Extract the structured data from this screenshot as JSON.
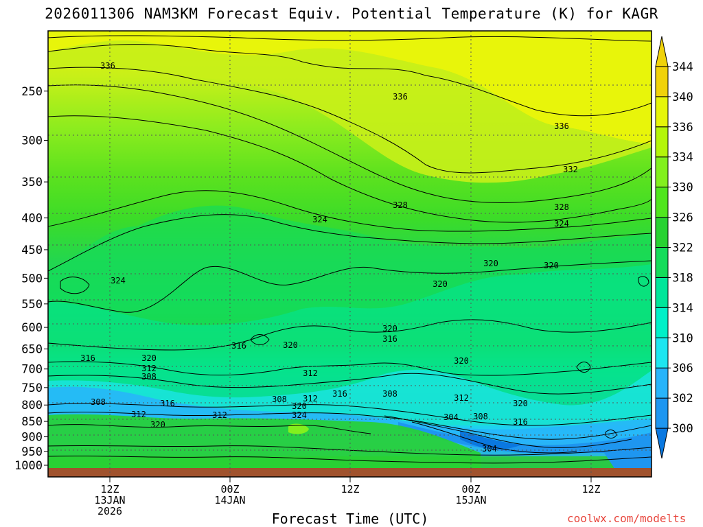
{
  "chart_data": {
    "type": "contour",
    "title": "2026011306 NAM3KM Forecast Equiv. Potential Temperature (K) for KAGR",
    "xlabel": "Forecast Time (UTC)",
    "credit": "coolwx.com/modelts",
    "y_axis": {
      "label": "",
      "ticks": [
        250,
        300,
        350,
        400,
        450,
        500,
        550,
        600,
        650,
        700,
        750,
        800,
        850,
        900,
        950,
        1000
      ],
      "range": [
        1000,
        200
      ],
      "scale": "log-pressure"
    },
    "x_axis": {
      "ticks": [
        {
          "lines": [
            "12Z",
            "13JAN",
            "2026"
          ]
        },
        {
          "lines": [
            "00Z",
            "14JAN"
          ]
        },
        {
          "lines": [
            "12Z"
          ]
        },
        {
          "lines": [
            "00Z",
            "15JAN"
          ]
        },
        {
          "lines": [
            "12Z"
          ]
        }
      ]
    },
    "colorbar": {
      "levels": [
        300,
        302,
        306,
        310,
        314,
        318,
        322,
        326,
        330,
        334,
        336,
        340,
        344
      ],
      "colors": [
        "#0a78e0",
        "#1e96f0",
        "#28b4fa",
        "#1ee6f0",
        "#00f0c8",
        "#00e69a",
        "#14dc5a",
        "#28d232",
        "#50e61e",
        "#82f01e",
        "#b4f50a",
        "#e6f50a",
        "#f0d20a"
      ]
    },
    "contour_labels": [
      {
        "text": "336"
      },
      {
        "text": "336"
      },
      {
        "text": "336"
      },
      {
        "text": "332"
      },
      {
        "text": "328"
      },
      {
        "text": "328"
      },
      {
        "text": "324"
      },
      {
        "text": "324"
      },
      {
        "text": "324"
      },
      {
        "text": "320"
      },
      {
        "text": "320"
      },
      {
        "text": "320"
      },
      {
        "text": "320"
      },
      {
        "text": "316"
      },
      {
        "text": "320"
      },
      {
        "text": "316"
      },
      {
        "text": "320"
      },
      {
        "text": "316"
      },
      {
        "text": "320"
      },
      {
        "text": "312"
      },
      {
        "text": "308"
      },
      {
        "text": "312"
      },
      {
        "text": "308"
      },
      {
        "text": "316"
      },
      {
        "text": "312"
      },
      {
        "text": "320"
      },
      {
        "text": "308"
      },
      {
        "text": "312"
      },
      {
        "text": "316"
      },
      {
        "text": "320"
      },
      {
        "text": "324"
      },
      {
        "text": "308"
      },
      {
        "text": "312"
      },
      {
        "text": "304"
      },
      {
        "text": "308"
      },
      {
        "text": "320"
      },
      {
        "text": "316"
      },
      {
        "text": "312"
      },
      {
        "text": "304"
      }
    ],
    "legend": "right"
  }
}
